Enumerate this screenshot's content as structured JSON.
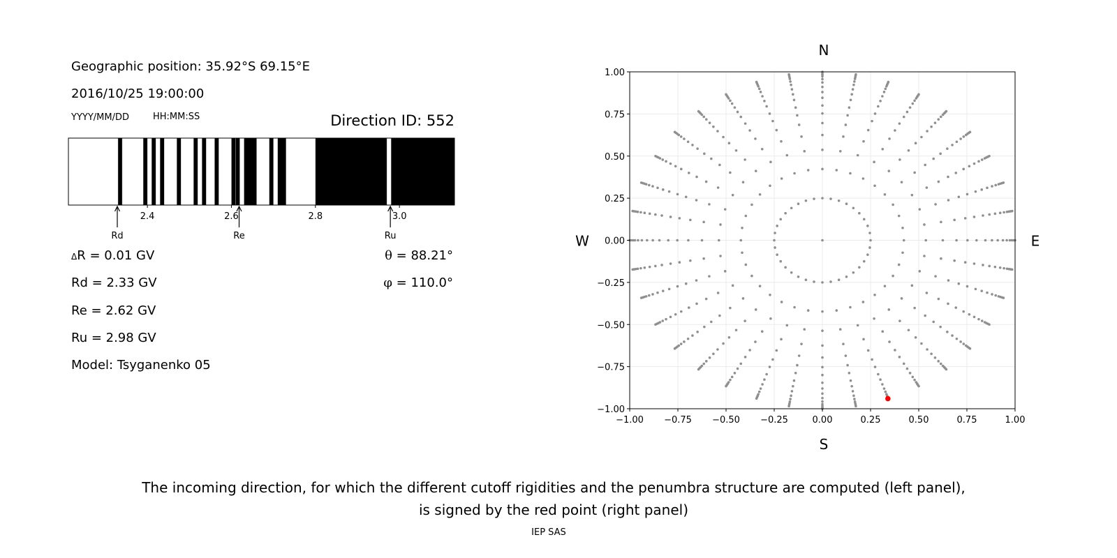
{
  "header": {
    "geo_position": "Geographic position: 35.92°S 69.15°E",
    "datetime": "2016/10/25 19:00:00",
    "date_format": "YYYY/MM/DD",
    "time_format": "HH:MM:SS",
    "direction_id": "Direction ID: 552"
  },
  "params": {
    "delta_symbol": "Δ",
    "delta_r": "R = 0.01 GV",
    "rd": "Rd = 2.33 GV",
    "re": "Re = 2.62 GV",
    "ru": "Ru = 2.98 GV",
    "model": "Model: Tsyganenko 05",
    "theta_symbol": "θ",
    "theta": " = 88.21°",
    "phi_symbol": "φ",
    "phi": " = 110.0°"
  },
  "caption": {
    "line1": "The incoming direction, for which the different cutoff rigidities and the penumbra structure are computed (left panel),",
    "line2": "is signed by the red point (right panel)",
    "credit": "IEP SAS"
  },
  "chart_data": [
    {
      "type": "bar",
      "name": "penumbra",
      "xlim": [
        2.212,
        3.131
      ],
      "xticks": [
        2.4,
        2.6,
        2.8,
        3.0
      ],
      "xtick_labels": [
        "2.4",
        "2.6",
        "2.8",
        "3.0"
      ],
      "bin_width": 0.01,
      "forbidden_intervals": [
        [
          2.33,
          2.34
        ],
        [
          2.39,
          2.4
        ],
        [
          2.41,
          2.42
        ],
        [
          2.43,
          2.44
        ],
        [
          2.47,
          2.48
        ],
        [
          2.51,
          2.52
        ],
        [
          2.53,
          2.54
        ],
        [
          2.56,
          2.57
        ],
        [
          2.6,
          2.61
        ],
        [
          2.61,
          2.62
        ],
        [
          2.63,
          2.66
        ],
        [
          2.69,
          2.7
        ],
        [
          2.71,
          2.73
        ],
        [
          2.8,
          2.97
        ],
        [
          2.98,
          3.131
        ]
      ],
      "forbidden_color": "#000000",
      "allowed_color": "#ffffff",
      "markers": [
        {
          "label": "Rd",
          "value": 2.33
        },
        {
          "label": "Re",
          "value": 2.62
        },
        {
          "label": "Ru",
          "value": 2.98
        }
      ]
    },
    {
      "type": "scatter",
      "name": "directions",
      "xlim": [
        -1.0,
        1.0
      ],
      "ylim": [
        -1.0,
        1.0
      ],
      "grid": true,
      "ticks": [
        -1.0,
        -0.75,
        -0.5,
        -0.25,
        0.0,
        0.25,
        0.5,
        0.75,
        1.0
      ],
      "tick_labels": [
        "−1.00",
        "−0.75",
        "−0.50",
        "−0.25",
        "0.00",
        "0.25",
        "0.50",
        "0.75",
        "1.00"
      ],
      "compass": {
        "top": "N",
        "bottom": "S",
        "left": "W",
        "right": "E"
      },
      "point_color": "#8f8f8f",
      "polar_grid": {
        "azimuth_step_deg": 10,
        "radii": [
          0.25,
          0.423,
          0.537,
          0.625,
          0.696,
          0.753,
          0.8,
          0.846,
          0.88,
          0.91,
          0.937,
          0.957,
          0.973,
          0.983,
          0.992,
          1.0
        ]
      },
      "center_point": {
        "x": 0.0,
        "y": 0.0
      },
      "highlight": {
        "x": 0.34,
        "y": -0.94,
        "color": "#ff0000"
      }
    }
  ]
}
